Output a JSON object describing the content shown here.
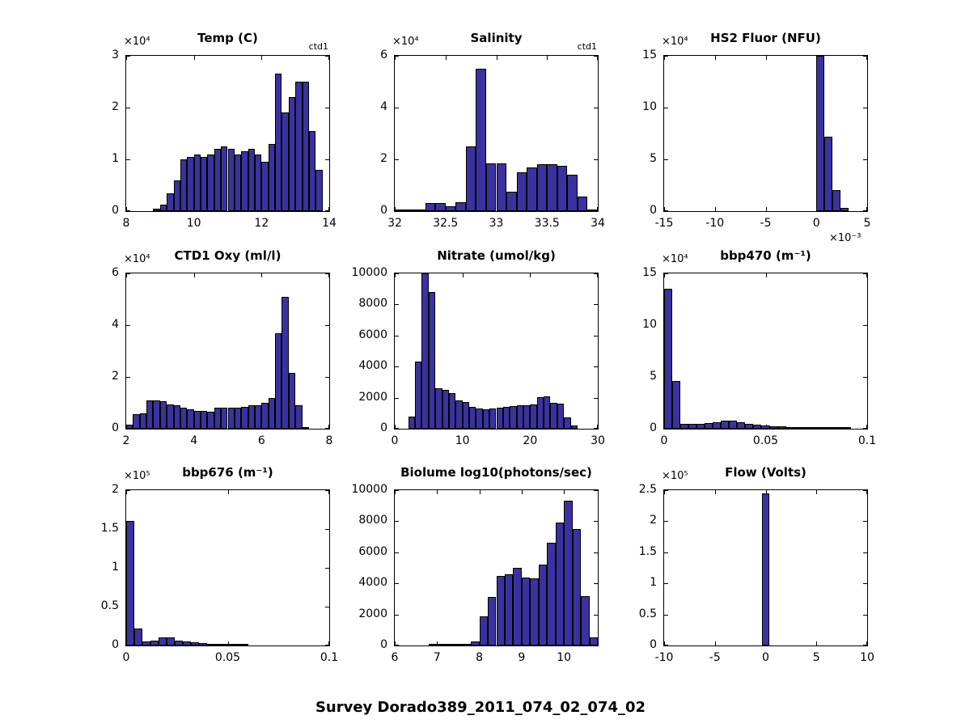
{
  "figure": {
    "title": "Survey Dorado389_2011_074_02_074_02",
    "bar_color": "#3b32a0",
    "bar_edge_color": "#000000",
    "background": "#ffffff"
  },
  "chart_data": [
    {
      "type": "bar",
      "title": "Temp (C)",
      "annotation": "ctd1",
      "y_exponent": "×10⁴",
      "x_exponent": "",
      "xlim": [
        8,
        14
      ],
      "ylim": [
        0,
        3
      ],
      "xtick_values": [
        8,
        10,
        12,
        14
      ],
      "xtick_labels": [
        "8",
        "10",
        "12",
        "14"
      ],
      "ytick_values": [
        0,
        1,
        2,
        3
      ],
      "ytick_labels": [
        "0",
        "1",
        "2",
        "3"
      ],
      "bin_start": 8.8,
      "bin_width": 0.2,
      "values": [
        0.05,
        0.12,
        0.35,
        0.6,
        1.0,
        1.05,
        1.1,
        1.05,
        1.1,
        1.2,
        1.25,
        1.2,
        1.1,
        1.15,
        1.2,
        1.1,
        0.95,
        1.3,
        2.65,
        1.9,
        2.2,
        2.5,
        2.5,
        1.55,
        0.8
      ]
    },
    {
      "type": "bar",
      "title": "Salinity",
      "annotation": "ctd1",
      "y_exponent": "×10⁴",
      "x_exponent": "",
      "xlim": [
        32,
        34
      ],
      "ylim": [
        0,
        6
      ],
      "xtick_values": [
        32,
        32.5,
        33,
        33.5,
        34
      ],
      "xtick_labels": [
        "32",
        "32.5",
        "33",
        "33.5",
        "34"
      ],
      "ytick_values": [
        0,
        2,
        4,
        6
      ],
      "ytick_labels": [
        "0",
        "2",
        "4",
        "6"
      ],
      "bin_start": 32.0,
      "bin_width": 0.1,
      "values": [
        0.0,
        0.03,
        0.05,
        0.3,
        0.3,
        0.2,
        0.35,
        2.5,
        5.5,
        1.85,
        1.85,
        0.75,
        1.5,
        1.7,
        1.8,
        1.8,
        1.75,
        1.4,
        0.55,
        0.05
      ]
    },
    {
      "type": "bar",
      "title": "HS2 Fluor (NFU)",
      "annotation": "",
      "y_exponent": "×10⁴",
      "x_exponent": "×10⁻³",
      "xlim": [
        -15,
        5
      ],
      "ylim": [
        0,
        15
      ],
      "xtick_values": [
        -15,
        -10,
        -5,
        0,
        5
      ],
      "xtick_labels": [
        "-15",
        "-10",
        "-5",
        "0",
        "5"
      ],
      "ytick_values": [
        0,
        5,
        10,
        15
      ],
      "ytick_labels": [
        "0",
        "5",
        "10",
        "15"
      ],
      "bin_start": 0,
      "bin_width": 0.8,
      "values": [
        15,
        7.2,
        2.0,
        0.35
      ]
    },
    {
      "type": "bar",
      "title": "CTD1 Oxy (ml/l)",
      "annotation": "",
      "y_exponent": "×10⁴",
      "x_exponent": "",
      "xlim": [
        2,
        8
      ],
      "ylim": [
        0,
        6
      ],
      "xtick_values": [
        2,
        4,
        6,
        8
      ],
      "xtick_labels": [
        "2",
        "4",
        "6",
        "8"
      ],
      "ytick_values": [
        0,
        2,
        4,
        6
      ],
      "ytick_labels": [
        "0",
        "2",
        "4",
        "6"
      ],
      "bin_start": 2.0,
      "bin_width": 0.2,
      "values": [
        0.15,
        0.55,
        0.6,
        1.1,
        1.1,
        1.05,
        0.95,
        0.9,
        0.8,
        0.75,
        0.7,
        0.7,
        0.65,
        0.8,
        0.8,
        0.8,
        0.8,
        0.85,
        0.9,
        0.9,
        1.0,
        1.2,
        3.7,
        5.1,
        2.15,
        0.9,
        0.05
      ]
    },
    {
      "type": "bar",
      "title": "Nitrate (umol/kg)",
      "annotation": "",
      "y_exponent": "",
      "x_exponent": "",
      "xlim": [
        0,
        30
      ],
      "ylim": [
        0,
        10000
      ],
      "xtick_values": [
        0,
        10,
        20,
        30
      ],
      "xtick_labels": [
        "0",
        "10",
        "20",
        "30"
      ],
      "ytick_values": [
        0,
        2000,
        4000,
        6000,
        8000,
        10000
      ],
      "ytick_labels": [
        "0",
        "2000",
        "4000",
        "6000",
        "8000",
        "10000"
      ],
      "bin_start": 2,
      "bin_width": 1,
      "values": [
        800,
        4300,
        10000,
        8800,
        2600,
        2500,
        2300,
        1800,
        1700,
        1400,
        1300,
        1250,
        1300,
        1350,
        1400,
        1450,
        1500,
        1500,
        1550,
        2050,
        2100,
        1650,
        1600,
        750,
        200
      ]
    },
    {
      "type": "bar",
      "title": "bbp470 (m⁻¹)",
      "annotation": "",
      "y_exponent": "×10⁴",
      "x_exponent": "",
      "xlim": [
        0,
        0.1
      ],
      "ylim": [
        0,
        15
      ],
      "xtick_values": [
        0,
        0.05,
        0.1
      ],
      "xtick_labels": [
        "0",
        "0.05",
        "0.1"
      ],
      "ytick_values": [
        0,
        5,
        10,
        15
      ],
      "ytick_labels": [
        "0",
        "5",
        "10",
        "15"
      ],
      "bin_start": 0,
      "bin_width": 0.004,
      "values": [
        13.5,
        4.6,
        0.5,
        0.45,
        0.5,
        0.55,
        0.6,
        0.75,
        0.8,
        0.65,
        0.5,
        0.4,
        0.3,
        0.25,
        0.2,
        0.18,
        0.15,
        0.12,
        0.1,
        0.08,
        0.05,
        0.03,
        0.02
      ]
    },
    {
      "type": "bar",
      "title": "bbp676 (m⁻¹)",
      "annotation": "",
      "y_exponent": "×10⁵",
      "x_exponent": "",
      "xlim": [
        0,
        0.1
      ],
      "ylim": [
        0,
        2
      ],
      "xtick_values": [
        0,
        0.05,
        0.1
      ],
      "xtick_labels": [
        "0",
        "0.05",
        "0.1"
      ],
      "ytick_values": [
        0,
        0.5,
        1,
        1.5,
        2
      ],
      "ytick_labels": [
        "0",
        "0.5",
        "1",
        "1.5",
        "2"
      ],
      "bin_start": 0,
      "bin_width": 0.004,
      "values": [
        1.6,
        0.22,
        0.05,
        0.06,
        0.1,
        0.1,
        0.06,
        0.05,
        0.04,
        0.03,
        0.02,
        0.015,
        0.01,
        0.008,
        0.005
      ]
    },
    {
      "type": "bar",
      "title": "Biolume log10(photons/sec)",
      "annotation": "",
      "y_exponent": "",
      "x_exponent": "",
      "xlim": [
        6,
        10.8
      ],
      "ylim": [
        0,
        10000
      ],
      "xtick_values": [
        6,
        7,
        8,
        9,
        10
      ],
      "xtick_labels": [
        "6",
        "7",
        "8",
        "9",
        "10"
      ],
      "ytick_values": [
        0,
        2000,
        4000,
        6000,
        8000,
        10000
      ],
      "ytick_labels": [
        "0",
        "2000",
        "4000",
        "6000",
        "8000",
        "10000"
      ],
      "bin_start": 6.8,
      "bin_width": 0.2,
      "values": [
        50,
        30,
        60,
        100,
        120,
        250,
        1900,
        3150,
        4500,
        4600,
        5000,
        4350,
        4300,
        5200,
        6600,
        7900,
        9300,
        7500,
        3200,
        500
      ]
    },
    {
      "type": "bar",
      "title": "Flow (Volts)",
      "annotation": "",
      "y_exponent": "×10⁵",
      "x_exponent": "",
      "xlim": [
        -10,
        10
      ],
      "ylim": [
        0,
        2.5
      ],
      "xtick_values": [
        -10,
        -5,
        0,
        5,
        10
      ],
      "xtick_labels": [
        "-10",
        "-5",
        "0",
        "5",
        "10"
      ],
      "ytick_values": [
        0,
        0.5,
        1,
        1.5,
        2,
        2.5
      ],
      "ytick_labels": [
        "0",
        "0.5",
        "1",
        "1.5",
        "2",
        "2.5"
      ],
      "bin_start": -0.35,
      "bin_width": 0.7,
      "values": [
        2.45
      ]
    }
  ]
}
